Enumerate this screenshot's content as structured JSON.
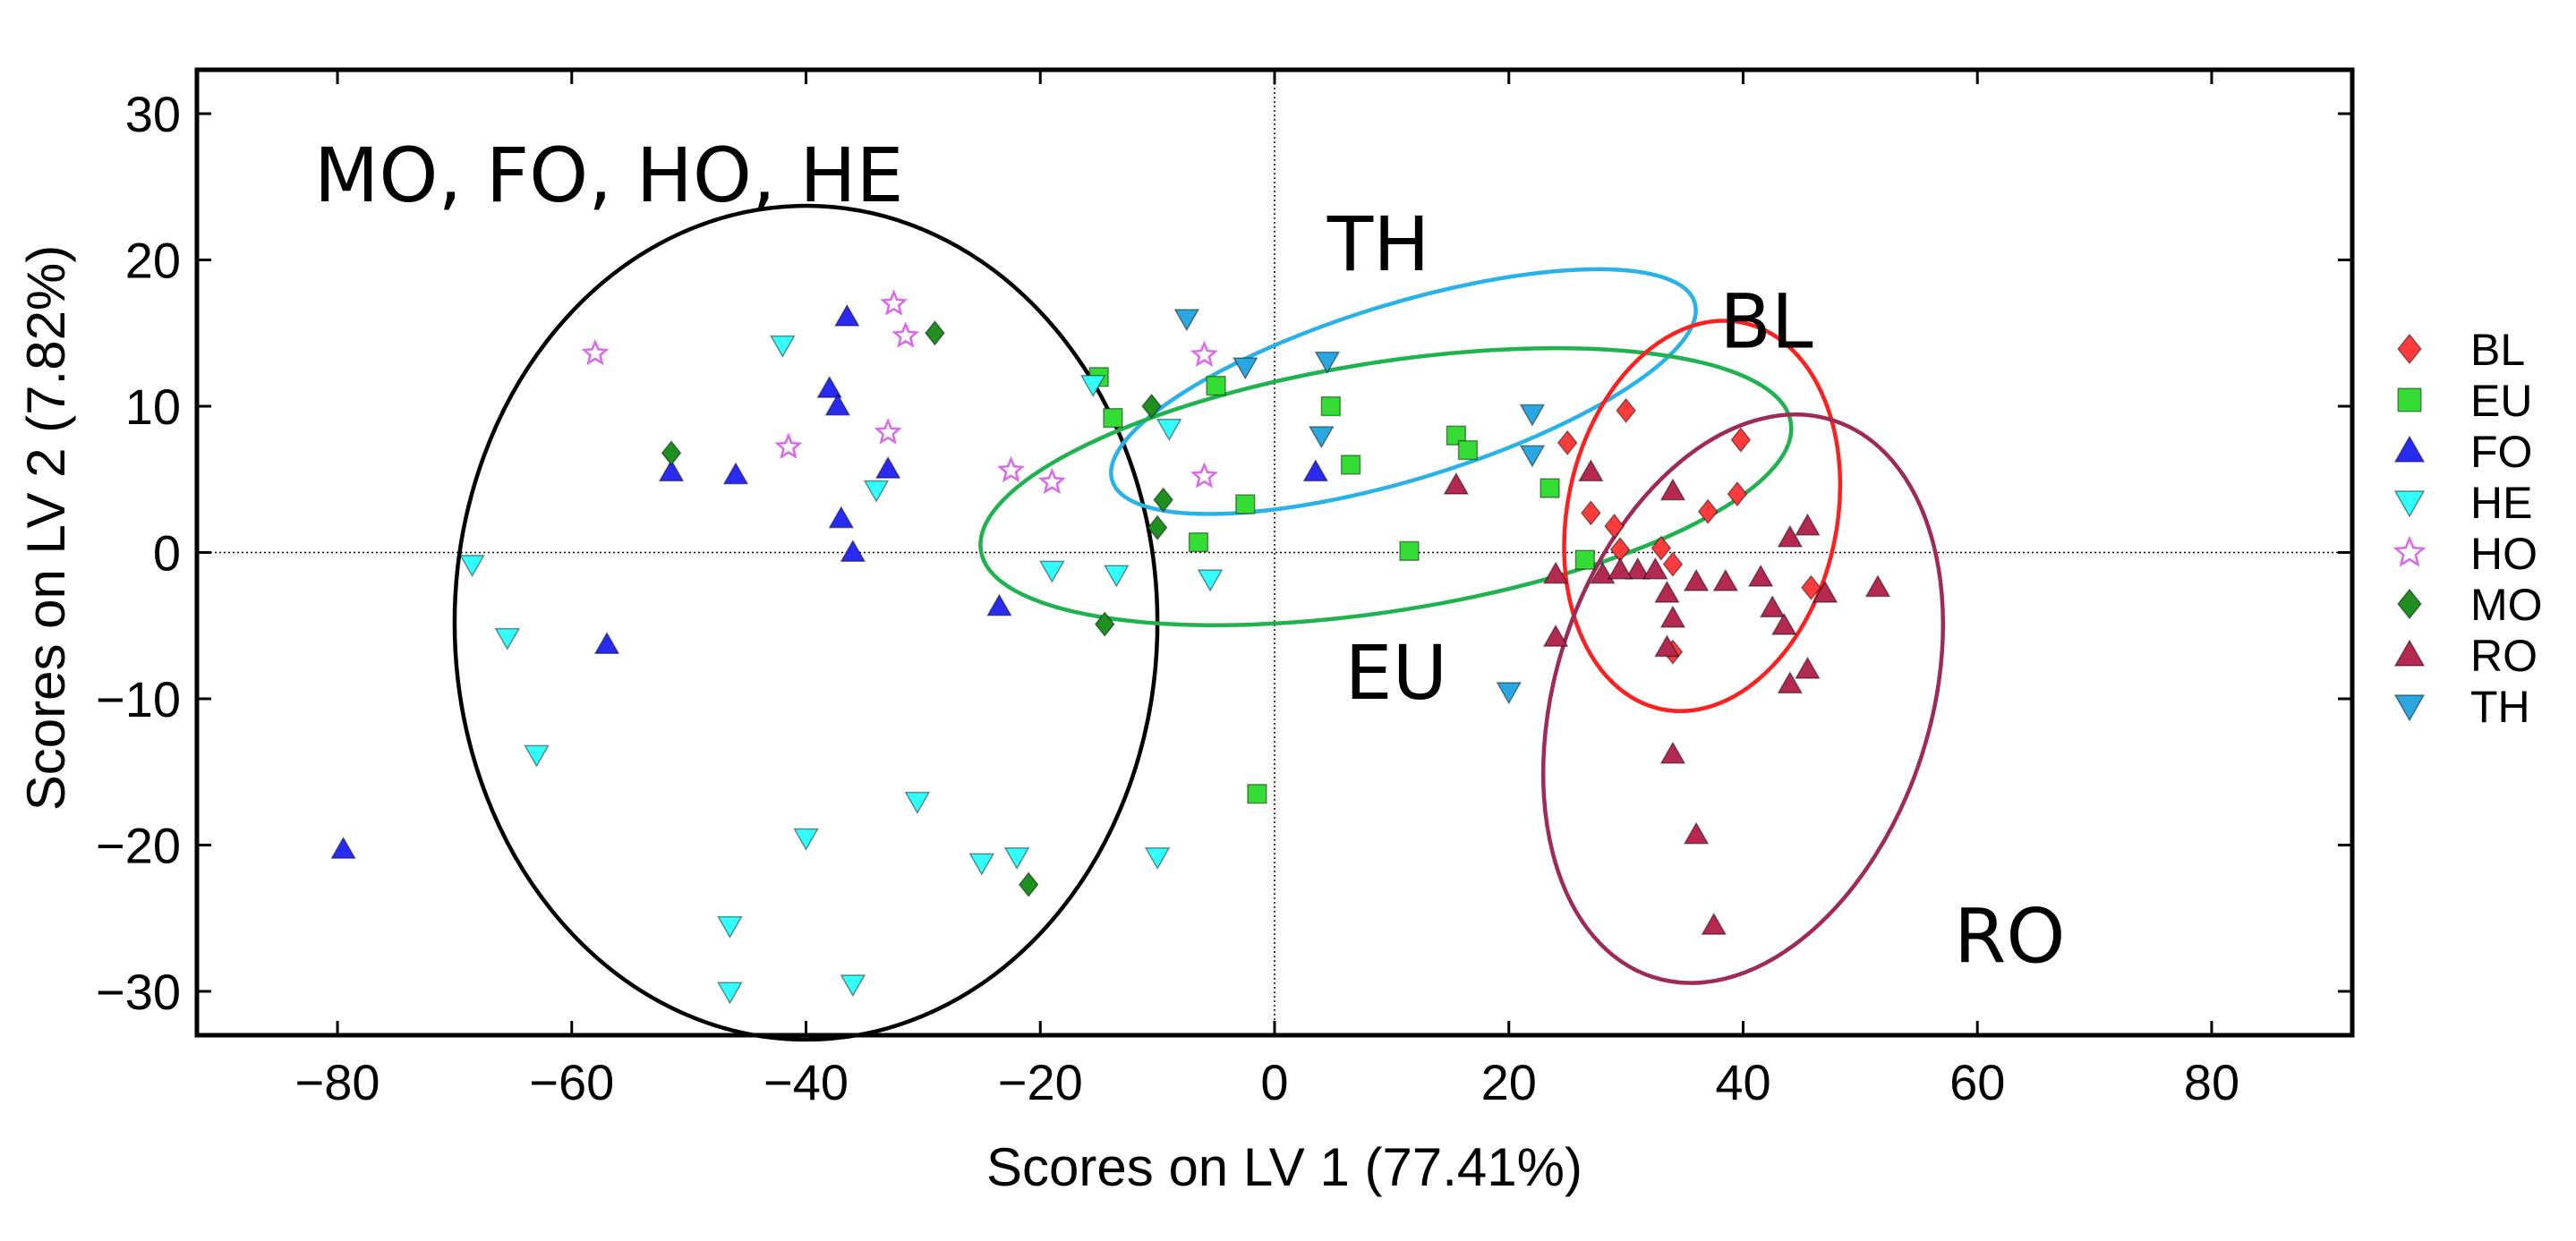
{
  "chart_data": {
    "type": "scatter",
    "title": "",
    "xlabel": "Scores on LV 1 (77.41%)",
    "ylabel": "Scores on LV 2 (7.82%)",
    "xlim": [
      -92,
      92
    ],
    "ylim": [
      -33,
      33
    ],
    "xticks": [
      -80,
      -60,
      -40,
      -20,
      0,
      20,
      40,
      60,
      80
    ],
    "yticks": [
      30,
      20,
      10,
      0,
      -10,
      -20,
      -30
    ],
    "xtick_labels": [
      "−80",
      "−60",
      "−40",
      "−20",
      "0",
      "20",
      "40",
      "60",
      "80"
    ],
    "ytick_labels": [
      "30",
      "20",
      "10",
      "0",
      "−10",
      "−20",
      "−30"
    ],
    "legend_position": "right",
    "series": [
      {
        "name": "BL",
        "marker": "diamond",
        "color": "#ff3b3b",
        "points": [
          [
            25,
            7.5
          ],
          [
            30,
            9.7
          ],
          [
            27,
            2.7
          ],
          [
            29,
            1.8
          ],
          [
            29.5,
            0.2
          ],
          [
            33,
            0.3
          ],
          [
            34,
            -0.8
          ],
          [
            37,
            2.8
          ],
          [
            39.5,
            4
          ],
          [
            39.8,
            7.7
          ],
          [
            34,
            -6.8
          ],
          [
            45.8,
            -2.4
          ]
        ]
      },
      {
        "name": "EU",
        "marker": "square",
        "color": "#33dd33",
        "points": [
          [
            -15,
            12
          ],
          [
            -13.8,
            9.2
          ],
          [
            -5,
            11.4
          ],
          [
            -6.5,
            0.7
          ],
          [
            -2.5,
            3.3
          ],
          [
            4.8,
            10
          ],
          [
            6.5,
            6
          ],
          [
            15.5,
            8
          ],
          [
            16.5,
            7
          ],
          [
            11.5,
            0.1
          ],
          [
            23.5,
            4.4
          ],
          [
            26.5,
            -0.5
          ],
          [
            -1.5,
            -16.5
          ]
        ]
      },
      {
        "name": "FO",
        "marker": "triangle-up",
        "color": "#2a2af5",
        "points": [
          [
            -36.5,
            16.1
          ],
          [
            -38,
            11.2
          ],
          [
            -37.3,
            10
          ],
          [
            -51.5,
            5.5
          ],
          [
            -46,
            5.3
          ],
          [
            -33,
            5.7
          ],
          [
            -37,
            2.3
          ],
          [
            -36,
            0
          ],
          [
            -57,
            -6.3
          ],
          [
            -79.5,
            -20.3
          ],
          [
            -23.5,
            -3.7
          ],
          [
            3.5,
            5.5
          ]
        ]
      },
      {
        "name": "HE",
        "marker": "triangle-down",
        "color": "#33ffff",
        "points": [
          [
            -42,
            14.2
          ],
          [
            -68.5,
            -0.8
          ],
          [
            -65.5,
            -5.8
          ],
          [
            -63,
            -13.8
          ],
          [
            -40,
            -19.5
          ],
          [
            -34,
            4.3
          ],
          [
            -30.5,
            -17
          ],
          [
            -25,
            -21.2
          ],
          [
            -22,
            -20.8
          ],
          [
            -46.5,
            -25.5
          ],
          [
            -46.5,
            -30
          ],
          [
            -36,
            -29.5
          ],
          [
            -19,
            -1.2
          ],
          [
            -13.5,
            -1.5
          ],
          [
            -9,
            8.5
          ],
          [
            -5.5,
            -1.8
          ],
          [
            -10,
            -20.8
          ],
          [
            -15.5,
            11.5
          ]
        ]
      },
      {
        "name": "HO",
        "marker": "star",
        "color": "#dd66ee",
        "points": [
          [
            -58,
            13.6
          ],
          [
            -32.5,
            17
          ],
          [
            -31.5,
            14.8
          ],
          [
            -33,
            8.2
          ],
          [
            -41.5,
            7.2
          ],
          [
            -22.5,
            5.6
          ],
          [
            -19,
            4.8
          ],
          [
            -6,
            5.2
          ],
          [
            -6,
            13.5
          ]
        ]
      },
      {
        "name": "MO",
        "marker": "diamond",
        "color": "#1f8f1f",
        "points": [
          [
            -29,
            15
          ],
          [
            -51.5,
            6.8
          ],
          [
            -10.5,
            10
          ],
          [
            -9.5,
            3.6
          ],
          [
            -10,
            1.7
          ],
          [
            -14.5,
            -4.9
          ],
          [
            -21,
            -22.7
          ]
        ]
      },
      {
        "name": "RO",
        "marker": "triangle-up",
        "color": "#b5284f",
        "points": [
          [
            15.5,
            4.6
          ],
          [
            24,
            -1.5
          ],
          [
            24,
            -5.8
          ],
          [
            28,
            -1.5
          ],
          [
            27,
            5.5
          ],
          [
            31,
            -1.2
          ],
          [
            32.5,
            -1.2
          ],
          [
            33.5,
            -2.8
          ],
          [
            34,
            -4.5
          ],
          [
            34,
            4.2
          ],
          [
            36,
            -2
          ],
          [
            38.5,
            -2
          ],
          [
            41.5,
            -1.7
          ],
          [
            42.5,
            -3.8
          ],
          [
            43.5,
            -5
          ],
          [
            44,
            1
          ],
          [
            45.5,
            1.8
          ],
          [
            47,
            -2.8
          ],
          [
            45.5,
            -8
          ],
          [
            44,
            -9
          ],
          [
            51.5,
            -2.4
          ],
          [
            33.5,
            -6.5
          ],
          [
            34,
            -13.8
          ],
          [
            36,
            -19.3
          ],
          [
            37.5,
            -25.5
          ],
          [
            29.5,
            -1.2
          ]
        ]
      },
      {
        "name": "TH",
        "marker": "triangle-down",
        "color": "#2aa6e0",
        "points": [
          [
            -7.5,
            16
          ],
          [
            -2.5,
            12.7
          ],
          [
            4.5,
            13.1
          ],
          [
            4,
            8
          ],
          [
            22,
            9.5
          ],
          [
            22,
            6.7
          ],
          [
            20,
            -9.5
          ]
        ]
      }
    ],
    "groups": [
      {
        "label": "MO, FO, HO, HE",
        "color": "#000000",
        "ellipse": {
          "cx": -40,
          "cy": -4.8,
          "rx": 30,
          "ry": 28.5,
          "angle": 0
        }
      },
      {
        "label": "TH",
        "color": "#29b2e8",
        "ellipse": {
          "cx": 11,
          "cy": 11,
          "rx": 26,
          "ry": 6,
          "angle": -17
        }
      },
      {
        "label": "EU",
        "color": "#1fb34f",
        "ellipse": {
          "cx": 9.5,
          "cy": 4.5,
          "rx": 35,
          "ry": 8.5,
          "angle": -9
        }
      },
      {
        "label": "BL",
        "color": "#ff1f1f",
        "ellipse": {
          "cx": 36.5,
          "cy": 2.5,
          "rx": 11.5,
          "ry": 13.5,
          "angle": 12
        }
      },
      {
        "label": "RO",
        "color": "#a02a57",
        "ellipse": {
          "cx": 40,
          "cy": -10,
          "rx": 16,
          "ry": 20,
          "angle": 18
        }
      }
    ],
    "annotations": [
      {
        "text": "MO, FO, HO, HE",
        "x": -82,
        "y": 24
      },
      {
        "text": "TH",
        "x": 4.5,
        "y": 19.3
      },
      {
        "text": "BL",
        "x": 38,
        "y": 14
      },
      {
        "text": "EU",
        "x": 6,
        "y": -10
      },
      {
        "text": "RO",
        "x": 58,
        "y": -28
      }
    ]
  }
}
